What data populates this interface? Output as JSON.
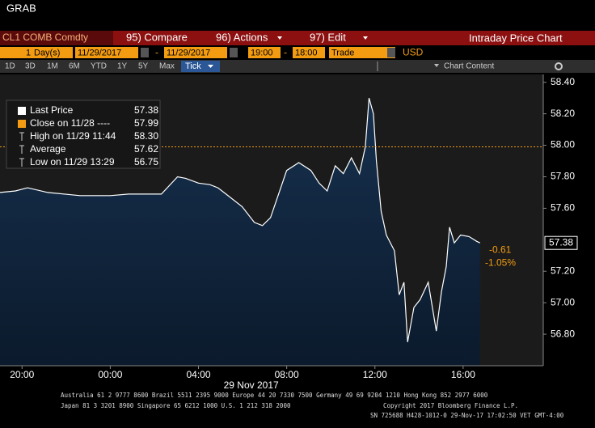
{
  "header": {
    "title": "GRAB"
  },
  "toolbar": {
    "security": "CL1 COMB Comdty",
    "buttons": [
      "95) Compare",
      "96) Actions",
      "97) Edit"
    ],
    "chart_name": "Intraday Price Chart"
  },
  "range": {
    "count": "1",
    "unit": "Day(s)",
    "start_date": "11/29/2017",
    "separator": "-",
    "end_date": "11/29/2017",
    "start_time": "19:00",
    "end_time": "18:00",
    "field": "Trade",
    "currency": "USD"
  },
  "periods": [
    "1D",
    "3D",
    "1M",
    "6M",
    "YTD",
    "1Y",
    "5Y",
    "Max"
  ],
  "tick_mode": "Tick",
  "chart_content": "Chart Content",
  "legend": [
    {
      "label": "Last Price",
      "value": "57.38"
    },
    {
      "label": "Close on 11/28 ----",
      "value": "57.99"
    },
    {
      "label": "High on 11/29 11:44",
      "value": "58.30"
    },
    {
      "label": "Average",
      "value": "57.62"
    },
    {
      "label": "Low on 11/29 13:29",
      "value": "56.75"
    }
  ],
  "price_tag": {
    "last": "57.38",
    "change": "-0.61",
    "change_pct": "-1.05%"
  },
  "chart_data": {
    "type": "line",
    "x_label": "29 Nov 2017",
    "x": [
      "2017-11-28T19:00",
      "2017-11-28T19:42",
      "2017-11-28T20:15",
      "2017-11-28T21:10",
      "2017-11-28T22:38",
      "2017-11-29T00:00",
      "2017-11-29T00:50",
      "2017-11-29T02:19",
      "2017-11-29T03:03",
      "2017-11-29T03:25",
      "2017-11-29T04:00",
      "2017-11-29T04:31",
      "2017-11-29T04:53",
      "2017-11-29T05:15",
      "2017-11-29T05:59",
      "2017-11-29T06:32",
      "2017-11-29T06:54",
      "2017-11-29T07:16",
      "2017-11-29T07:38",
      "2017-11-29T08:00",
      "2017-11-29T08:33",
      "2017-11-29T09:06",
      "2017-11-29T09:28",
      "2017-11-29T09:50",
      "2017-11-29T10:12",
      "2017-11-29T10:34",
      "2017-11-29T10:56",
      "2017-11-29T11:18",
      "2017-11-29T11:34",
      "2017-11-29T11:44",
      "2017-11-29T11:56",
      "2017-11-29T12:04",
      "2017-11-29T12:17",
      "2017-11-29T12:31",
      "2017-11-29T12:53",
      "2017-11-29T13:06",
      "2017-11-29T13:19",
      "2017-11-29T13:29",
      "2017-11-29T13:46",
      "2017-11-29T14:03",
      "2017-11-29T14:25",
      "2017-11-29T14:47",
      "2017-11-29T15:01",
      "2017-11-29T15:14",
      "2017-11-29T15:23",
      "2017-11-29T15:36",
      "2017-11-29T15:53",
      "2017-11-29T16:16",
      "2017-11-29T16:37",
      "2017-11-29T16:46"
    ],
    "series": [
      {
        "name": "Last Price",
        "color": "#ffffff",
        "area_color": "#17314f",
        "values": [
          57.7,
          57.71,
          57.73,
          57.7,
          57.68,
          57.68,
          57.69,
          57.69,
          57.8,
          57.79,
          57.76,
          57.75,
          57.73,
          57.69,
          57.61,
          57.51,
          57.49,
          57.54,
          57.69,
          57.84,
          57.89,
          57.84,
          57.76,
          57.71,
          57.87,
          57.82,
          57.92,
          57.82,
          57.99,
          58.3,
          58.2,
          57.9,
          57.58,
          57.43,
          57.33,
          57.05,
          57.13,
          56.75,
          56.97,
          57.02,
          57.13,
          56.82,
          57.07,
          57.23,
          57.48,
          57.38,
          57.43,
          57.42,
          57.39,
          57.38
        ]
      }
    ],
    "reference_line": {
      "value": 57.99,
      "color": "#f39c12"
    },
    "xlim": [
      "2017-11-28T19:00",
      "2017-11-29T19:38"
    ],
    "xticks": [
      {
        "value": "2017-11-28T20:00",
        "label": "20:00"
      },
      {
        "value": "2017-11-29T00:00",
        "label": "00:00"
      },
      {
        "value": "2017-11-29T04:00",
        "label": "04:00"
      },
      {
        "value": "2017-11-29T08:00",
        "label": "08:00"
      },
      {
        "value": "2017-11-29T12:00",
        "label": "12:00"
      },
      {
        "value": "2017-11-29T16:00",
        "label": "16:00"
      }
    ],
    "ylim": [
      56.6,
      58.45
    ],
    "yticks": [
      {
        "value": 56.8,
        "label": "56.80"
      },
      {
        "value": 57.0,
        "label": "57.00"
      },
      {
        "value": 57.2,
        "label": "57.20"
      },
      {
        "value": 57.6,
        "label": "57.60"
      },
      {
        "value": 57.8,
        "label": "57.80"
      },
      {
        "value": 58.0,
        "label": "58.00"
      },
      {
        "value": 58.2,
        "label": "58.20"
      },
      {
        "value": 58.4,
        "label": "58.40"
      }
    ]
  },
  "footer": [
    "Australia 61 2 9777 8600 Brazil 5511 2395 9000 Europe 44 20 7330 7500 Germany 49 69 9204 1210 Hong Kong 852 2977 6000",
    "Japan 81 3 3201 8900      Singapore 65 6212 1000      U.S. 1 212 318 2000",
    "Copyright 2017 Bloomberg Finance L.P.",
    "SN 725688 H428-1012-0 29-Nov-17 17:02:50 VET  GMT-4:00"
  ]
}
